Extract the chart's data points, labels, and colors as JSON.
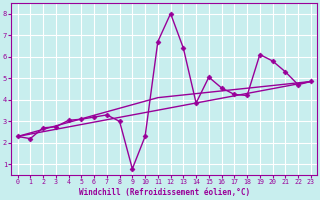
{
  "title": "",
  "xlabel": "Windchill (Refroidissement éolien,°C)",
  "ylabel": "",
  "xlim": [
    -0.5,
    23.5
  ],
  "ylim": [
    0.5,
    8.5
  ],
  "xticks": [
    0,
    1,
    2,
    3,
    4,
    5,
    6,
    7,
    8,
    9,
    10,
    11,
    12,
    13,
    14,
    15,
    16,
    17,
    18,
    19,
    20,
    21,
    22,
    23
  ],
  "yticks": [
    1,
    2,
    3,
    4,
    5,
    6,
    7,
    8
  ],
  "background_color": "#c8eeee",
  "grid_color": "#aadddd",
  "line_color": "#990099",
  "series1_x": [
    0,
    1,
    2,
    3,
    4,
    5,
    6,
    7,
    8,
    9,
    10,
    11,
    12,
    13,
    14,
    15,
    16,
    17,
    18,
    19,
    20,
    21,
    22,
    23
  ],
  "series1_y": [
    2.3,
    2.2,
    2.7,
    2.75,
    3.05,
    3.1,
    3.2,
    3.3,
    3.0,
    0.8,
    2.3,
    6.7,
    8.0,
    6.4,
    3.85,
    5.05,
    4.55,
    4.25,
    4.2,
    6.1,
    5.8,
    5.3,
    4.7,
    4.85
  ],
  "series2_x": [
    0,
    23
  ],
  "series2_y": [
    2.3,
    4.85
  ],
  "series3_x": [
    0,
    11,
    23
  ],
  "series3_y": [
    2.3,
    4.1,
    4.85
  ],
  "marker": "D",
  "markersize": 2.5,
  "linewidth": 1.0
}
